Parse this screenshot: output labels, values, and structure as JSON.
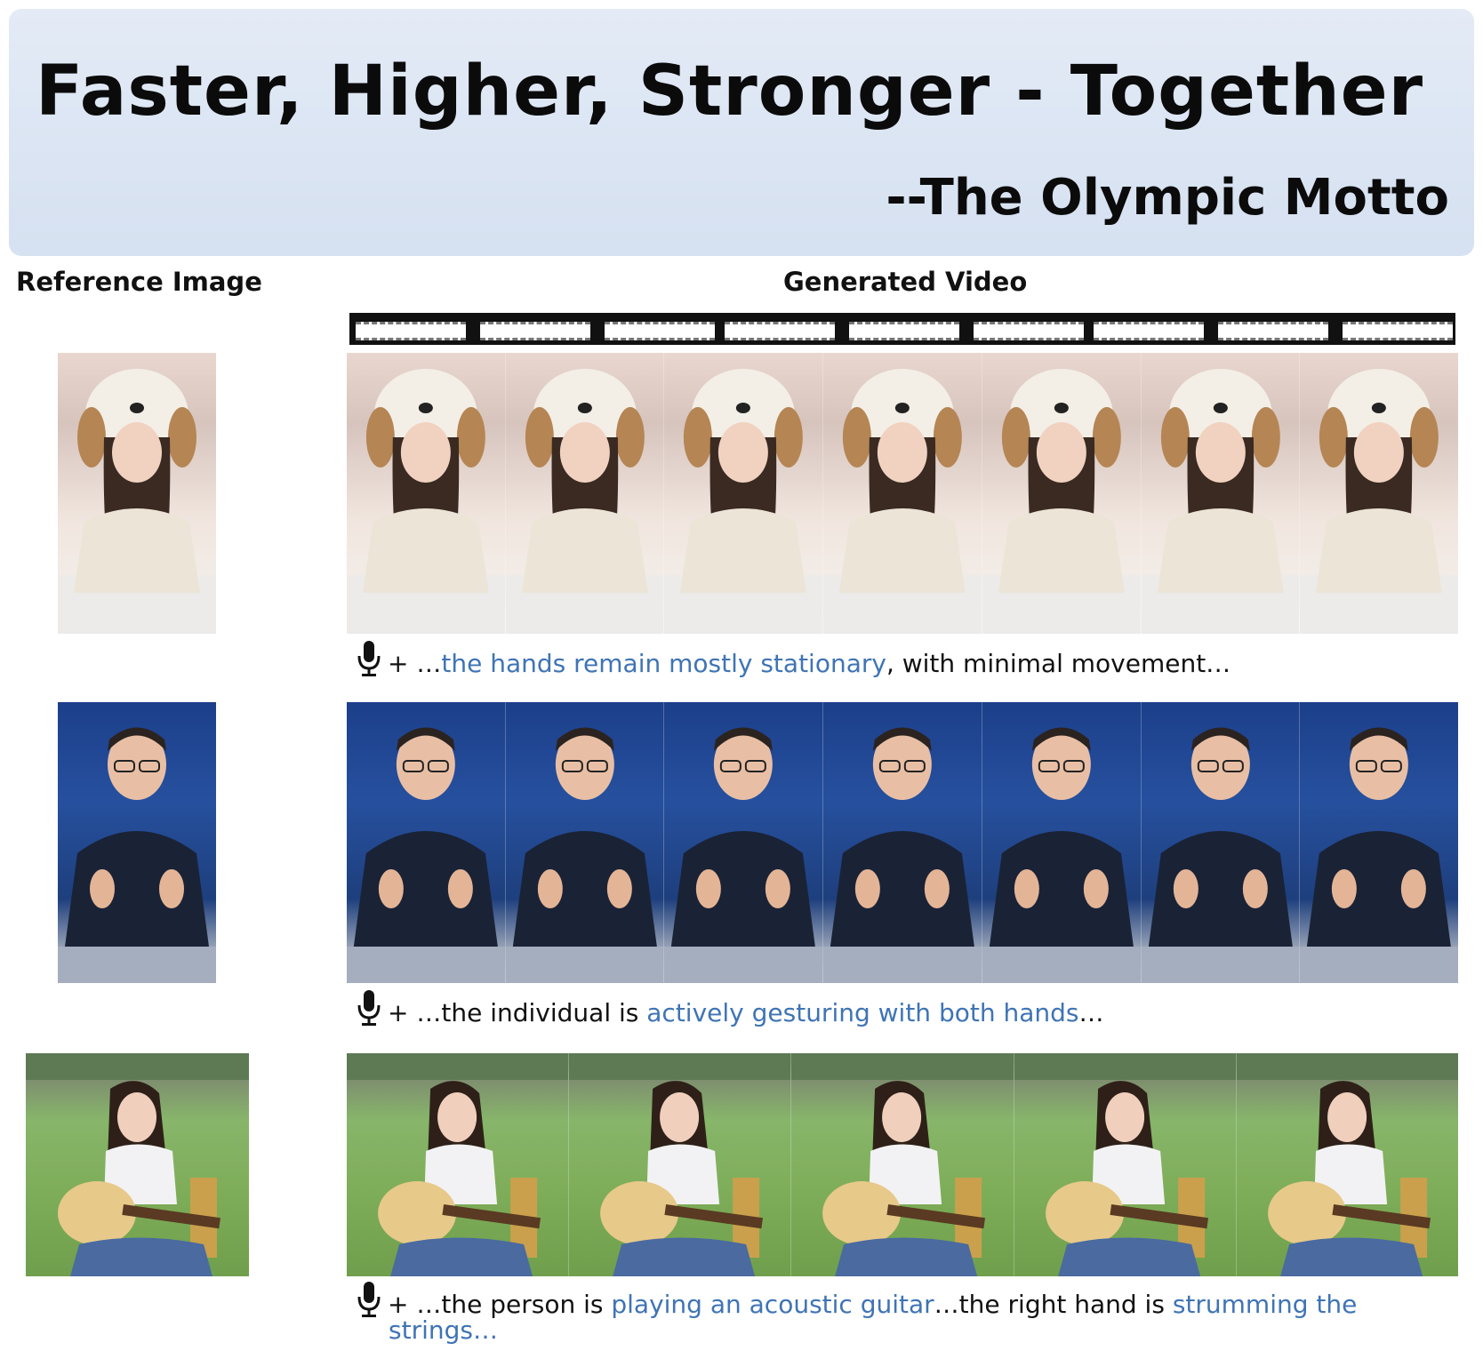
{
  "header": {
    "motto": "Faster, Higher, Stronger - Together",
    "attribution": "--The Olympic Motto"
  },
  "columns": {
    "reference": "Reference Image",
    "generated": "Generated Video"
  },
  "rows": [
    {
      "caption_parts": [
        "+ …",
        "the hands remain mostly stationary",
        ", with minimal movement…"
      ],
      "frames": 7
    },
    {
      "caption_parts": [
        "+ …the individual is ",
        "actively gesturing with both hands",
        "…"
      ],
      "frames": 7
    },
    {
      "caption_parts": [
        "+ …the person is ",
        "playing an acoustic guitar",
        "…the right hand is ",
        "strumming the"
      ],
      "caption_line2": "strings…",
      "frames": 5
    }
  ],
  "colors": {
    "highlight": "#3f74b5",
    "banner": "#dbe5f3"
  },
  "icons": [
    "microphone-icon"
  ]
}
